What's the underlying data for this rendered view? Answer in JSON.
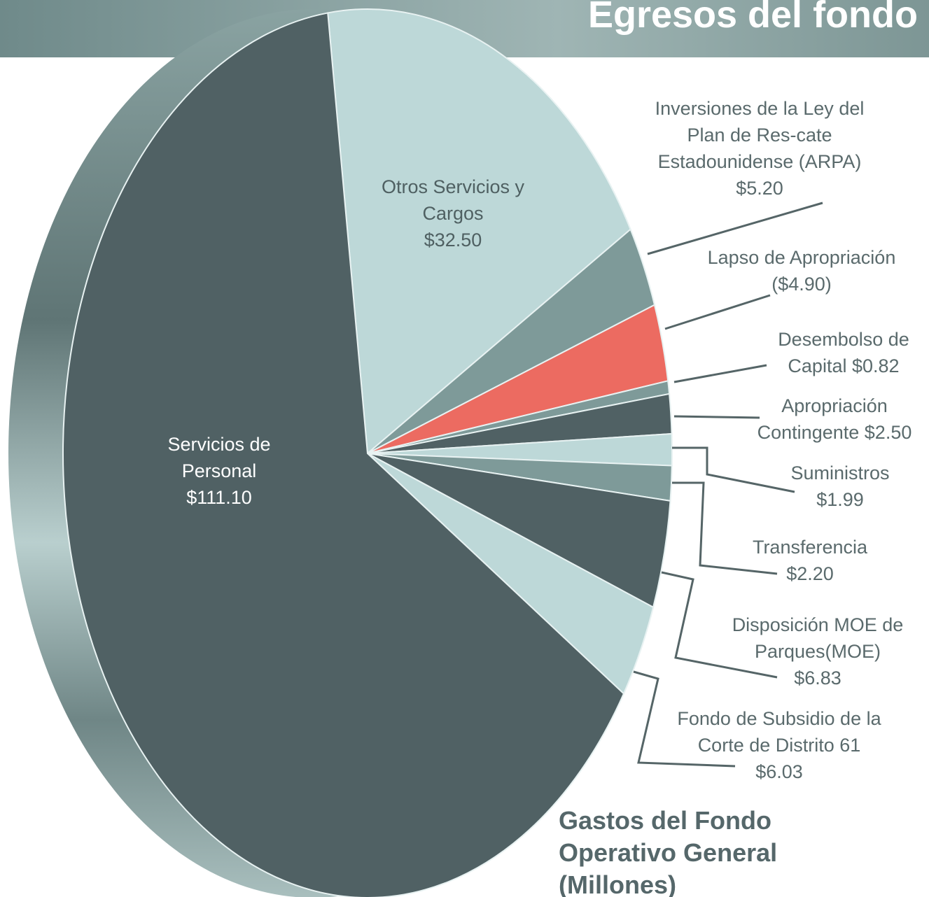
{
  "header": {
    "title": "Egresos del fondo"
  },
  "chart_data": {
    "type": "pie",
    "title": "Gastos del Fondo Operativo General (Millones)",
    "categories": [
      "Otros Servicios y Cargos",
      "Inversiones de la Ley del Plan de Res-cate Estadounidense (ARPA)",
      "Lapso de Apropriación",
      "Desembolso de Capital",
      "Apropriación Contingente",
      "Suministros",
      "Transferencia",
      "Disposición MOE de Parques(MOE)",
      "Fondo de Subsidio de la Corte de Distrito 61",
      "Servicios de Personal"
    ],
    "values": [
      32.5,
      5.2,
      4.9,
      0.82,
      2.5,
      1.99,
      2.2,
      6.83,
      6.03,
      111.1
    ],
    "value_labels": [
      "$32.50",
      "$5.20",
      "($4.90)",
      "$0.82",
      "$2.50",
      "$1.99",
      "$2.20",
      "$6.83",
      "$6.03",
      "$111.10"
    ],
    "colors": [
      "#bdd8d8",
      "#7e9a99",
      "#ec6b61",
      "#7e9a99",
      "#506164",
      "#bdd8d8",
      "#7e9a99",
      "#506164",
      "#bdd8d8",
      "#506164"
    ]
  }
}
